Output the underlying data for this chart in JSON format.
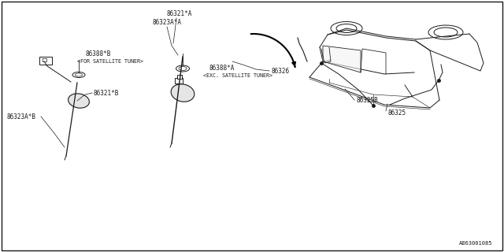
{
  "bg_color": "#ffffff",
  "line_color": "#1a1a1a",
  "footnote": "A863001085",
  "labels": {
    "86321A": "86321*A",
    "86323A_A": "86323A*A",
    "86321B": "86321*B",
    "86323A_B": "86323A*B",
    "86388A": "86388*A",
    "86388B": "86388*B",
    "86325": "86325",
    "86325B": "86325B",
    "86326": "86326"
  },
  "captions": {
    "exc": "<EXC. SATELLITE TUNER>",
    "for": "<FOR SATELLITE TUNER>"
  },
  "figsize": [
    6.4,
    3.2
  ],
  "dpi": 100
}
